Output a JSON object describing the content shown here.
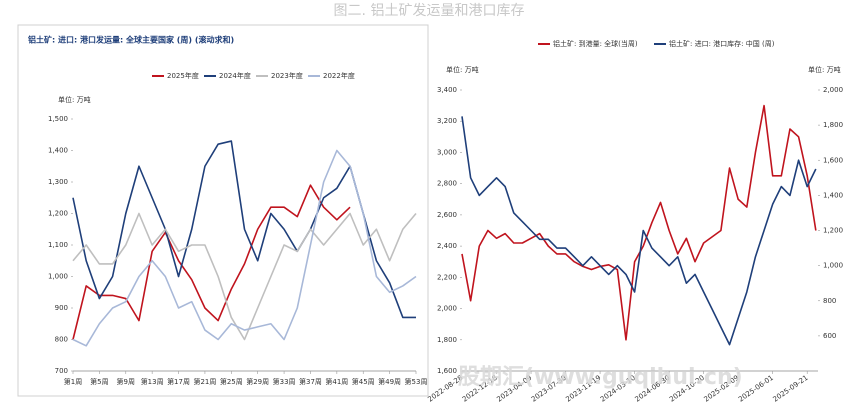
{
  "page_title": "图二. 铝土矿发运量和港口库存",
  "watermark": "股期汇(www.guqihui.cn)",
  "chart_data": [
    {
      "type": "line",
      "title": "铝土矿: 进口: 港口发运量: 全球主要国家 (周) (滚动求和)",
      "unit_label": "单位: 万吨",
      "x": [
        1,
        3,
        5,
        7,
        9,
        11,
        13,
        15,
        17,
        19,
        21,
        23,
        25,
        27,
        29,
        31,
        33,
        35,
        37,
        39,
        41,
        43,
        45,
        47,
        49,
        51,
        53
      ],
      "xlim": [
        1,
        53
      ],
      "xticks": [
        {
          "value": 1,
          "label": "第1周"
        },
        {
          "value": 5,
          "label": "第5周"
        },
        {
          "value": 9,
          "label": "第9周"
        },
        {
          "value": 13,
          "label": "第13周"
        },
        {
          "value": 17,
          "label": "第17周"
        },
        {
          "value": 21,
          "label": "第21周"
        },
        {
          "value": 25,
          "label": "第25周"
        },
        {
          "value": 29,
          "label": "第29周"
        },
        {
          "value": 33,
          "label": "第33周"
        },
        {
          "value": 37,
          "label": "第37周"
        },
        {
          "value": 41,
          "label": "第41周"
        },
        {
          "value": 45,
          "label": "第45周"
        },
        {
          "value": 49,
          "label": "第49周"
        },
        {
          "value": 53,
          "label": "第53周"
        }
      ],
      "ylim": [
        700,
        1500
      ],
      "yticks": [
        700,
        800,
        900,
        {
          "value": 1000,
          "label": "1,000"
        },
        {
          "value": 1100,
          "label": "1,100"
        },
        {
          "value": 1200,
          "label": "1,200"
        },
        {
          "value": 1300,
          "label": "1,300"
        },
        {
          "value": 1400,
          "label": "1,400"
        },
        {
          "value": 1500,
          "label": "1,500"
        }
      ],
      "grid": false,
      "legend": "top",
      "series": [
        {
          "name": "2025年度",
          "color": "#c0141e",
          "values": [
            800,
            970,
            940,
            940,
            930,
            860,
            1080,
            1140,
            1050,
            990,
            900,
            860,
            960,
            1040,
            1150,
            1220,
            1220,
            1190,
            1290,
            1220,
            1180,
            1220,
            null,
            null,
            null,
            null,
            null
          ]
        },
        {
          "name": "2024年度",
          "color": "#1f3f7a",
          "values": [
            1250,
            1050,
            930,
            1000,
            1200,
            1350,
            1250,
            1150,
            1000,
            1150,
            1350,
            1420,
            1430,
            1150,
            1050,
            1200,
            1150,
            1080,
            1150,
            1250,
            1280,
            1350,
            1200,
            1050,
            980,
            870,
            870
          ]
        },
        {
          "name": "2023年度",
          "color": "#bfbfbf",
          "values": [
            1050,
            1100,
            1040,
            1040,
            1100,
            1200,
            1100,
            1150,
            1080,
            1100,
            1100,
            1000,
            870,
            800,
            900,
            1000,
            1100,
            1080,
            1150,
            1100,
            1150,
            1200,
            1100,
            1150,
            1050,
            1150,
            1200
          ]
        },
        {
          "name": "2022年度",
          "color": "#a8b8d8",
          "values": [
            800,
            780,
            850,
            900,
            920,
            1000,
            1050,
            1000,
            900,
            920,
            830,
            800,
            850,
            830,
            840,
            850,
            800,
            900,
            1100,
            1300,
            1400,
            1350,
            1200,
            1000,
            950,
            970,
            1000
          ]
        }
      ]
    },
    {
      "type": "line",
      "unit_label": "单位: 万吨",
      "unit_label_y2": "单位: 万吨",
      "x": [
        "2022-08-28",
        "2022-09-25",
        "2022-10-23",
        "2022-11-20",
        "2022-12-18",
        "2023-01-15",
        "2023-02-12",
        "2023-03-12",
        "2023-04-09",
        "2023-05-07",
        "2023-06-04",
        "2023-07-02",
        "2023-07-30",
        "2023-08-27",
        "2023-09-24",
        "2023-10-22",
        "2023-11-19",
        "2023-12-17",
        "2024-01-14",
        "2024-02-11",
        "2024-03-10",
        "2024-04-07",
        "2024-05-05",
        "2024-06-02",
        "2024-06-30",
        "2024-07-28",
        "2024-08-25",
        "2024-09-22",
        "2024-10-20",
        "2024-11-17",
        "2024-12-15",
        "2025-01-12",
        "2025-02-09",
        "2025-03-09",
        "2025-04-06",
        "2025-05-04",
        "2025-06-01",
        "2025-06-29",
        "2025-07-27",
        "2025-08-24",
        "2025-09-21",
        "2025-10-19"
      ],
      "xlim": [
        "2022-08-28",
        "2025-10-26"
      ],
      "xticks": [
        "2022-08-28",
        "2022-12-18",
        "2023-04-09",
        "2023-07-30",
        "2023-11-19",
        "2024-03-10",
        "2024-06-30",
        "2024-10-20",
        "2025-02-09",
        "2025-06-01",
        "2025-09-21"
      ],
      "ylim": [
        1600,
        3400
      ],
      "yticks": [
        {
          "value": 1600,
          "label": "1,600"
        },
        {
          "value": 1800,
          "label": "1,800"
        },
        {
          "value": 2000,
          "label": "2,000"
        },
        {
          "value": 2200,
          "label": "2,200"
        },
        {
          "value": 2400,
          "label": "2,400"
        },
        {
          "value": 2600,
          "label": "2,600"
        },
        {
          "value": 2800,
          "label": "2,800"
        },
        {
          "value": 3000,
          "label": "3,000"
        },
        {
          "value": 3200,
          "label": "3,200"
        },
        {
          "value": 3400,
          "label": "3,400"
        }
      ],
      "y2lim": [
        400,
        2000
      ],
      "y2ticks": [
        600,
        800,
        {
          "value": 1000,
          "label": "1,000"
        },
        {
          "value": 1200,
          "label": "1,200"
        },
        {
          "value": 1400,
          "label": "1,400"
        },
        {
          "value": 1600,
          "label": "1,600"
        },
        {
          "value": 1800,
          "label": "1,800"
        },
        {
          "value": 2000,
          "label": "2,000"
        }
      ],
      "grid": false,
      "legend": "top",
      "series": [
        {
          "name": "铝土矿: 到港量: 全球(当周)",
          "color": "#c0141e",
          "values": [
            2350,
            2050,
            2400,
            2500,
            2450,
            2480,
            2420,
            2420,
            2450,
            2480,
            2400,
            2350,
            2350,
            2300,
            2270,
            2250,
            2270,
            2280,
            2250,
            1800,
            2300,
            2400,
            2550,
            2680,
            2500,
            2350,
            2450,
            2300,
            2420,
            2460,
            2500,
            2900,
            2700,
            2650,
            3000,
            3300,
            2850,
            2850,
            3150,
            3100,
            2850,
            2500
          ]
        },
        {
          "name": "铝土矿: 进口: 港口库存: 中国 (周)",
          "color": "#1f3f7a",
          "axis": "y2",
          "values": [
            1850,
            1500,
            1400,
            1450,
            1500,
            1450,
            1300,
            1250,
            1200,
            1150,
            1150,
            1100,
            1100,
            1050,
            1000,
            1050,
            1000,
            950,
            1000,
            950,
            850,
            1200,
            1100,
            1050,
            1000,
            1050,
            900,
            950,
            850,
            750,
            650,
            550,
            700,
            850,
            1050,
            1200,
            1350,
            1450,
            1400,
            1600,
            1450,
            1550
          ]
        }
      ]
    }
  ]
}
